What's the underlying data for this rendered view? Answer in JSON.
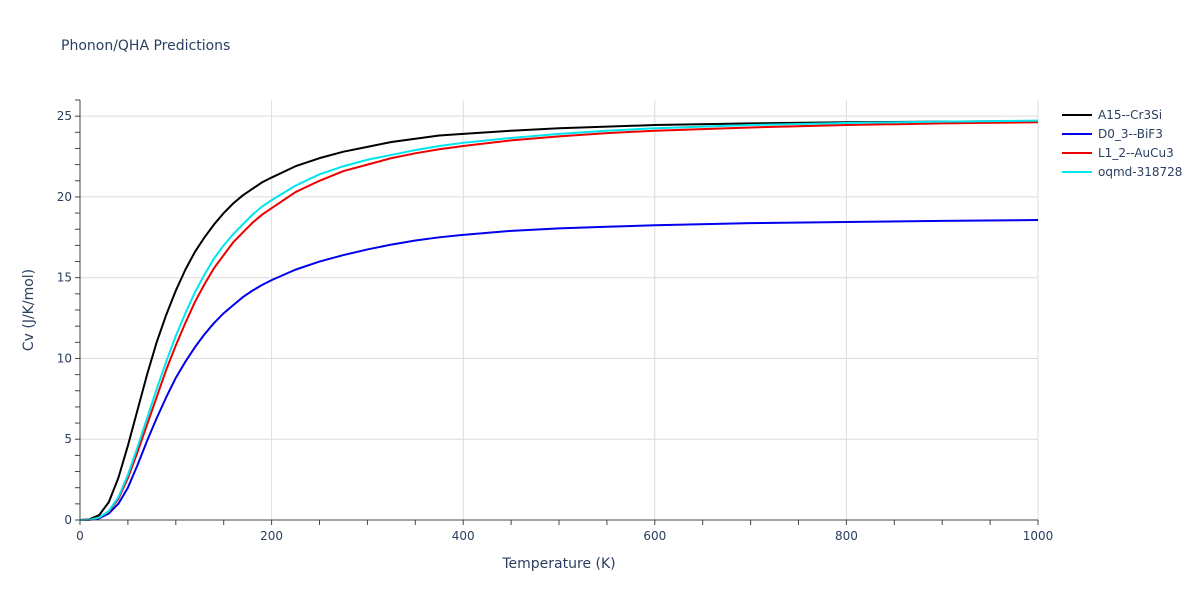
{
  "chart_data": {
    "type": "line",
    "title": "Phonon/QHA Predictions",
    "xlabel": "Temperature (K)",
    "ylabel": "Cv (J/K/mol)",
    "xlim": [
      0,
      1000
    ],
    "ylim": [
      0,
      26
    ],
    "x_ticks": [
      0,
      200,
      400,
      600,
      800,
      1000
    ],
    "y_ticks": [
      0,
      5,
      10,
      15,
      20,
      25
    ],
    "grid": true,
    "legend_position": "right",
    "series": [
      {
        "name": "A15--Cr3Si",
        "color": "#000000",
        "x": [
          0,
          10,
          20,
          30,
          40,
          50,
          60,
          70,
          80,
          90,
          100,
          110,
          120,
          130,
          140,
          150,
          160,
          170,
          180,
          190,
          200,
          225,
          250,
          275,
          300,
          325,
          350,
          375,
          400,
          450,
          500,
          550,
          600,
          700,
          800,
          900,
          1000
        ],
        "y": [
          0,
          0.05,
          0.3,
          1.1,
          2.6,
          4.6,
          6.8,
          9.0,
          11.0,
          12.7,
          14.2,
          15.5,
          16.6,
          17.5,
          18.3,
          19.0,
          19.6,
          20.1,
          20.5,
          20.9,
          21.2,
          21.9,
          22.4,
          22.8,
          23.1,
          23.4,
          23.6,
          23.8,
          23.9,
          24.1,
          24.25,
          24.35,
          24.45,
          24.55,
          24.62,
          24.66,
          24.7
        ]
      },
      {
        "name": "D0_3--BiF3",
        "color": "#0000ee",
        "x": [
          0,
          10,
          20,
          30,
          40,
          50,
          60,
          70,
          80,
          90,
          100,
          110,
          120,
          130,
          140,
          150,
          160,
          170,
          180,
          190,
          200,
          225,
          250,
          275,
          300,
          325,
          350,
          375,
          400,
          450,
          500,
          550,
          600,
          700,
          800,
          900,
          1000
        ],
        "y": [
          0,
          0.01,
          0.1,
          0.4,
          1.0,
          2.0,
          3.4,
          4.9,
          6.3,
          7.6,
          8.8,
          9.8,
          10.7,
          11.5,
          12.2,
          12.8,
          13.3,
          13.8,
          14.2,
          14.55,
          14.85,
          15.5,
          16.0,
          16.4,
          16.75,
          17.05,
          17.3,
          17.5,
          17.65,
          17.9,
          18.05,
          18.15,
          18.25,
          18.38,
          18.45,
          18.52,
          18.57
        ]
      },
      {
        "name": "L1_2--AuCu3",
        "color": "#ee0000",
        "x": [
          0,
          10,
          20,
          30,
          40,
          50,
          60,
          70,
          80,
          90,
          100,
          110,
          120,
          130,
          140,
          150,
          160,
          170,
          180,
          190,
          200,
          225,
          250,
          275,
          300,
          325,
          350,
          375,
          400,
          450,
          500,
          550,
          600,
          700,
          800,
          900,
          1000
        ],
        "y": [
          0,
          0.02,
          0.15,
          0.5,
          1.3,
          2.6,
          4.2,
          5.9,
          7.6,
          9.3,
          10.8,
          12.2,
          13.5,
          14.6,
          15.6,
          16.4,
          17.2,
          17.8,
          18.4,
          18.9,
          19.3,
          20.3,
          21.0,
          21.6,
          22.0,
          22.4,
          22.7,
          22.95,
          23.15,
          23.5,
          23.75,
          23.95,
          24.1,
          24.3,
          24.45,
          24.55,
          24.62
        ]
      },
      {
        "name": "oqmd-318728",
        "color": "#00e5ee",
        "x": [
          0,
          10,
          20,
          30,
          40,
          50,
          60,
          70,
          80,
          90,
          100,
          110,
          120,
          130,
          140,
          150,
          160,
          170,
          180,
          190,
          200,
          225,
          250,
          275,
          300,
          325,
          350,
          375,
          400,
          450,
          500,
          550,
          600,
          700,
          800,
          900,
          1000
        ],
        "y": [
          0,
          0.02,
          0.15,
          0.55,
          1.4,
          2.8,
          4.5,
          6.3,
          8.1,
          9.8,
          11.4,
          12.8,
          14.1,
          15.2,
          16.2,
          17.0,
          17.7,
          18.3,
          18.9,
          19.4,
          19.8,
          20.7,
          21.4,
          21.9,
          22.3,
          22.6,
          22.9,
          23.15,
          23.35,
          23.65,
          23.9,
          24.1,
          24.25,
          24.45,
          24.58,
          24.66,
          24.72
        ]
      }
    ]
  }
}
